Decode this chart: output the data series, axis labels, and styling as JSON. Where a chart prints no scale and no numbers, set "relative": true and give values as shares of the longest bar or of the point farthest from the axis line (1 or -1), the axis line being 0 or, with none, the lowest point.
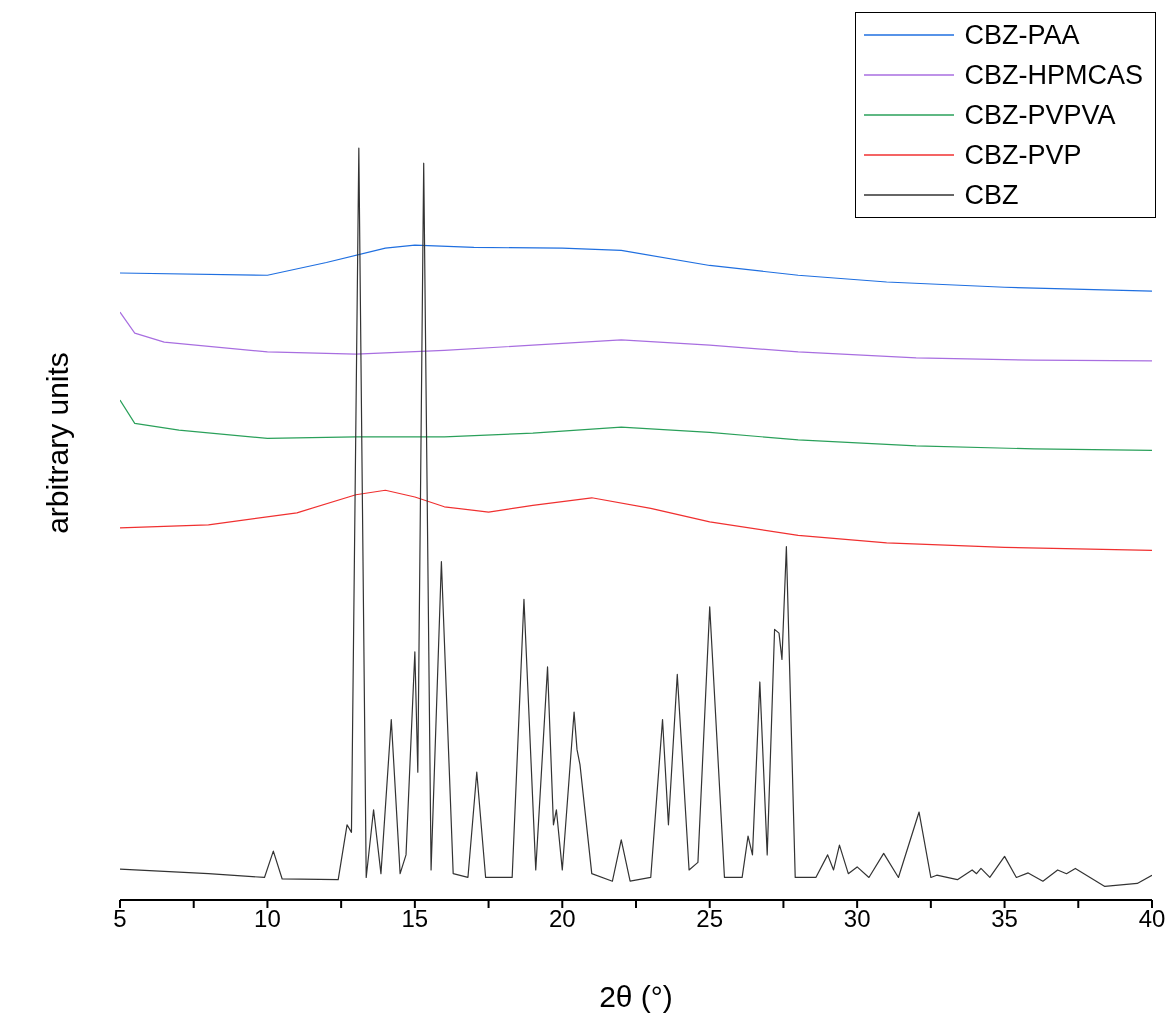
{
  "chart_data": {
    "type": "line",
    "relative": true,
    "xlabel": "2θ (°)",
    "ylabel": "arbitrary units",
    "xlim": [
      5,
      40
    ],
    "xticks": [
      5,
      {
        "value": 7.5,
        "label": null
      },
      10,
      {
        "value": 12.5,
        "label": null
      },
      15,
      {
        "value": 17.5,
        "label": null
      },
      20,
      {
        "value": 22.5,
        "label": null
      },
      25,
      {
        "value": 27.5,
        "label": null
      },
      30,
      {
        "value": 32.5,
        "label": null
      },
      35,
      {
        "value": 37.5,
        "label": null
      },
      40
    ],
    "legend": "top right",
    "grid": false,
    "marker": "none",
    "line_style": "solid",
    "series": [
      {
        "name": "CBZ-PAA",
        "color": "#1f6fe0",
        "x": [
          5,
          10,
          12,
          14,
          15,
          17,
          20,
          22,
          25,
          28,
          31,
          35,
          40
        ],
        "values": [
          0.834,
          0.831,
          0.848,
          0.867,
          0.871,
          0.868,
          0.867,
          0.864,
          0.844,
          0.831,
          0.822,
          0.815,
          0.81
        ]
      },
      {
        "name": "CBZ-HPMCAS",
        "color": "#a86ee0",
        "x": [
          5,
          5.5,
          6.5,
          10,
          13,
          16,
          19,
          22,
          25,
          28,
          32,
          36,
          40
        ],
        "values": [
          0.782,
          0.754,
          0.742,
          0.729,
          0.726,
          0.731,
          0.738,
          0.745,
          0.738,
          0.729,
          0.721,
          0.718,
          0.717
        ]
      },
      {
        "name": "CBZ-PVPVA",
        "color": "#2aa05a",
        "x": [
          5,
          5.5,
          7,
          10,
          13,
          16,
          19,
          22,
          25,
          28,
          32,
          36,
          40
        ],
        "values": [
          0.665,
          0.634,
          0.625,
          0.614,
          0.616,
          0.616,
          0.621,
          0.629,
          0.622,
          0.612,
          0.604,
          0.6,
          0.598
        ]
      },
      {
        "name": "CBZ-PVP",
        "color": "#f03030",
        "x": [
          5,
          8,
          11,
          13,
          14,
          15,
          16,
          17.5,
          19,
          21,
          23,
          25,
          28,
          31,
          35,
          40
        ],
        "values": [
          0.495,
          0.499,
          0.515,
          0.539,
          0.545,
          0.536,
          0.523,
          0.516,
          0.525,
          0.535,
          0.521,
          0.503,
          0.485,
          0.475,
          0.469,
          0.465
        ]
      },
      {
        "name": "CBZ",
        "color": "#333333",
        "x": [
          5,
          8,
          9.9,
          10.2,
          10.5,
          12.4,
          12.7,
          12.85,
          13.1,
          13.35,
          13.6,
          13.85,
          14.2,
          14.5,
          14.7,
          15.0,
          15.1,
          15.3,
          15.55,
          15.9,
          16.3,
          16.8,
          17.1,
          17.4,
          18.3,
          18.7,
          19.1,
          19.5,
          19.7,
          19.8,
          20.0,
          20.4,
          20.5,
          20.6,
          21.0,
          21.7,
          22.0,
          22.3,
          23.0,
          23.4,
          23.6,
          23.9,
          24.3,
          24.6,
          25.0,
          25.5,
          26.1,
          26.3,
          26.45,
          26.7,
          26.95,
          27.2,
          27.35,
          27.45,
          27.6,
          27.9,
          28.6,
          29.0,
          29.2,
          29.4,
          29.7,
          30.0,
          30.4,
          30.9,
          31.4,
          32.1,
          32.5,
          32.7,
          33.4,
          33.9,
          34.05,
          34.2,
          34.5,
          35.0,
          35.4,
          35.8,
          36.3,
          36.8,
          37.1,
          37.4,
          38.4,
          39.5,
          40
        ],
        "values": [
          0.041,
          0.035,
          0.03,
          0.065,
          0.028,
          0.027,
          0.1,
          0.09,
          1.0,
          0.03,
          0.12,
          0.035,
          0.24,
          0.035,
          0.06,
          0.33,
          0.17,
          0.98,
          0.04,
          0.45,
          0.035,
          0.03,
          0.17,
          0.03,
          0.03,
          0.4,
          0.04,
          0.31,
          0.1,
          0.12,
          0.04,
          0.25,
          0.2,
          0.18,
          0.035,
          0.025,
          0.08,
          0.025,
          0.03,
          0.24,
          0.1,
          0.3,
          0.04,
          0.05,
          0.39,
          0.03,
          0.03,
          0.085,
          0.06,
          0.29,
          0.06,
          0.36,
          0.355,
          0.32,
          0.47,
          0.03,
          0.03,
          0.06,
          0.04,
          0.073,
          0.035,
          0.044,
          0.03,
          0.062,
          0.03,
          0.117,
          0.03,
          0.033,
          0.027,
          0.04,
          0.035,
          0.042,
          0.03,
          0.058,
          0.03,
          0.036,
          0.025,
          0.04,
          0.035,
          0.042,
          0.018,
          0.022,
          0.033
        ]
      }
    ]
  }
}
